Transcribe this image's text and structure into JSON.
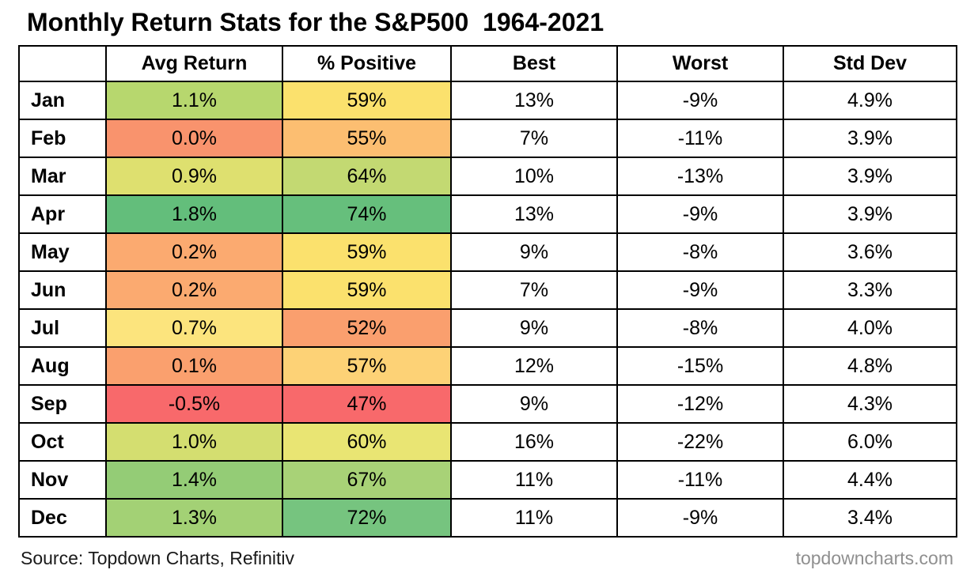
{
  "title": "Monthly Return Stats for the S&P500  1964-2021",
  "footer": {
    "source": "Source: Topdown Charts, Refinitiv",
    "site": "topdowncharts.com"
  },
  "colors": {
    "scale_min_red": "#f8696b",
    "scale_mid_yellow": "#ffeb84",
    "scale_max_green": "#63be7b",
    "border": "#000000",
    "site_text": "#8f8f8f"
  },
  "chart_data": {
    "type": "table",
    "title": "Monthly Return Stats for the S&P500 1964-2021",
    "columns": [
      "",
      "Avg Return",
      "% Positive",
      "Best",
      "Worst",
      "Std Dev"
    ],
    "legend_position": "none",
    "grid": true,
    "rows": [
      {
        "month": "Jan",
        "avg_return": "1.1%",
        "pct_positive": "59%",
        "best": "13%",
        "worst": "-9%",
        "std_dev": "4.9%",
        "avg_color": "#b7d76e",
        "pos_color": "#fbe16d"
      },
      {
        "month": "Feb",
        "avg_return": "0.0%",
        "pct_positive": "55%",
        "best": "7%",
        "worst": "-11%",
        "std_dev": "3.9%",
        "avg_color": "#f9936d",
        "pos_color": "#fcbe71"
      },
      {
        "month": "Mar",
        "avg_return": "0.9%",
        "pct_positive": "64%",
        "best": "10%",
        "worst": "-13%",
        "std_dev": "3.9%",
        "avg_color": "#dee06f",
        "pos_color": "#c3d972"
      },
      {
        "month": "Apr",
        "avg_return": "1.8%",
        "pct_positive": "74%",
        "best": "13%",
        "worst": "-9%",
        "std_dev": "3.9%",
        "avg_color": "#63be7b",
        "pos_color": "#66bf7c"
      },
      {
        "month": "May",
        "avg_return": "0.2%",
        "pct_positive": "59%",
        "best": "9%",
        "worst": "-8%",
        "std_dev": "3.6%",
        "avg_color": "#fbaa70",
        "pos_color": "#fbe16d"
      },
      {
        "month": "Jun",
        "avg_return": "0.2%",
        "pct_positive": "59%",
        "best": "7%",
        "worst": "-9%",
        "std_dev": "3.3%",
        "avg_color": "#fbaa70",
        "pos_color": "#fbe16d"
      },
      {
        "month": "Jul",
        "avg_return": "0.7%",
        "pct_positive": "52%",
        "best": "9%",
        "worst": "-8%",
        "std_dev": "4.0%",
        "avg_color": "#fce47d",
        "pos_color": "#fa9f6e"
      },
      {
        "month": "Aug",
        "avg_return": "0.1%",
        "pct_positive": "57%",
        "best": "12%",
        "worst": "-15%",
        "std_dev": "4.8%",
        "avg_color": "#faa06e",
        "pos_color": "#fdd276"
      },
      {
        "month": "Sep",
        "avg_return": "-0.5%",
        "pct_positive": "47%",
        "best": "9%",
        "worst": "-12%",
        "std_dev": "4.3%",
        "avg_color": "#f8696b",
        "pos_color": "#f8696b"
      },
      {
        "month": "Oct",
        "avg_return": "1.0%",
        "pct_positive": "60%",
        "best": "16%",
        "worst": "-22%",
        "std_dev": "6.0%",
        "avg_color": "#d4de70",
        "pos_color": "#e9e573"
      },
      {
        "month": "Nov",
        "avg_return": "1.4%",
        "pct_positive": "67%",
        "best": "11%",
        "worst": "-11%",
        "std_dev": "4.4%",
        "avg_color": "#94cc76",
        "pos_color": "#a8d277"
      },
      {
        "month": "Dec",
        "avg_return": "1.3%",
        "pct_positive": "72%",
        "best": "11%",
        "worst": "-9%",
        "std_dev": "3.4%",
        "avg_color": "#a3d175",
        "pos_color": "#76c47f"
      }
    ]
  }
}
